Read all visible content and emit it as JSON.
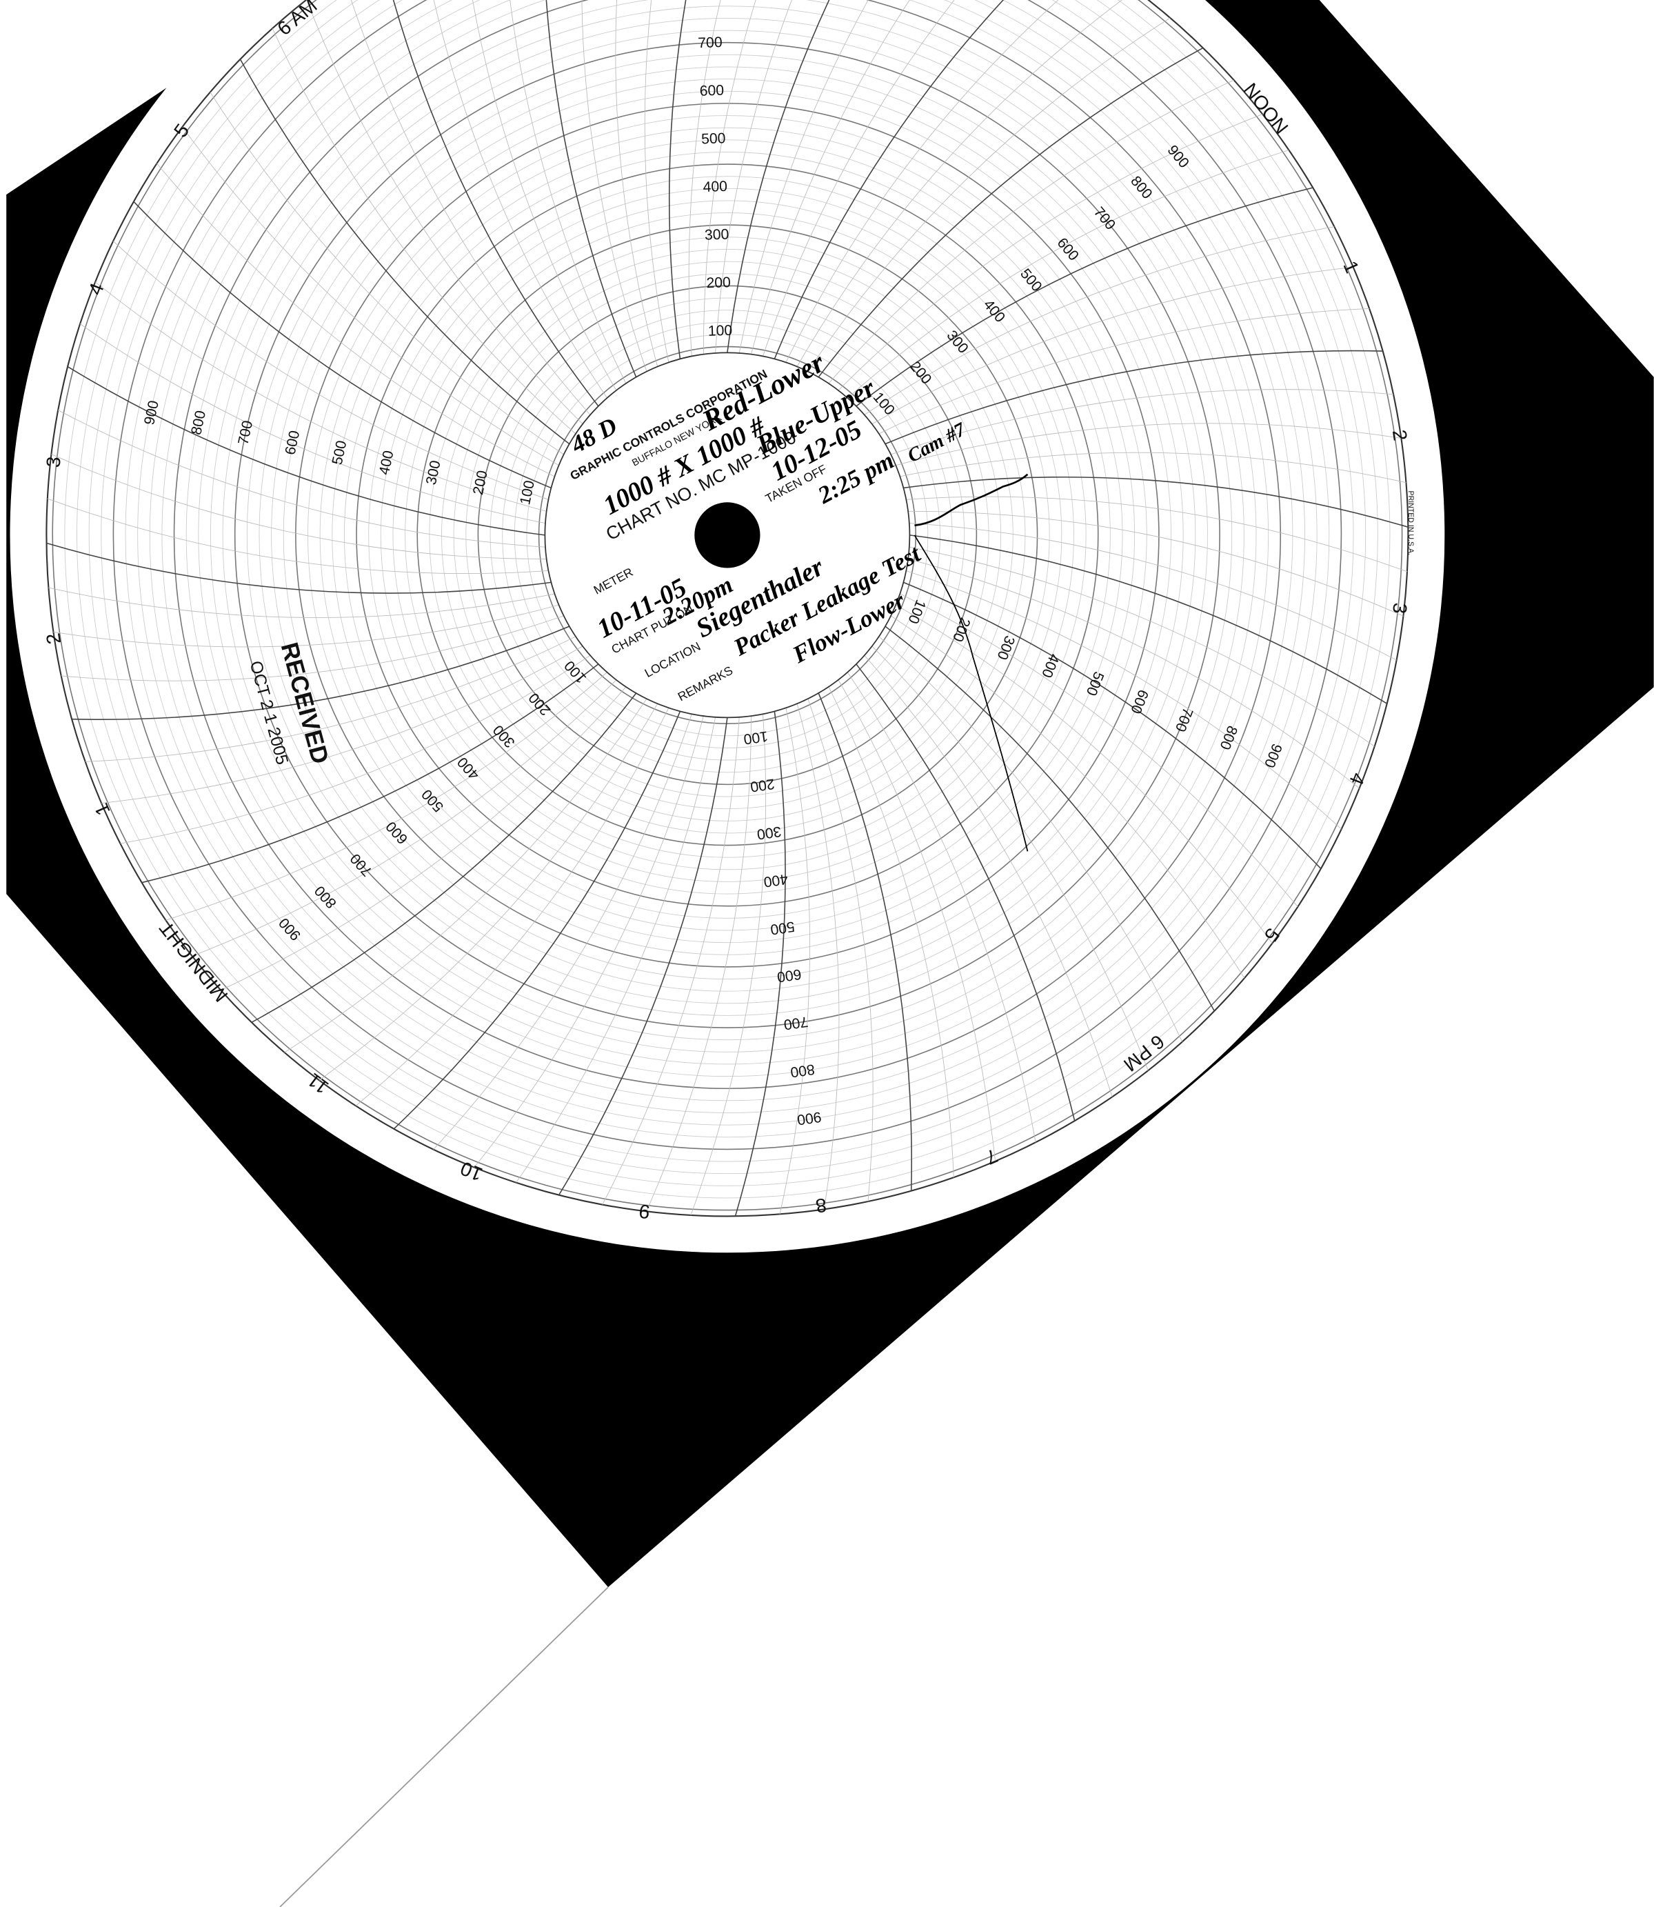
{
  "header": {
    "company": "GRAPHIC CONTROLS CORPORATION",
    "city": "BUFFALO NEW YORK",
    "chart_no": "CHART NO. MC MP-1000",
    "printed": "PRINTED IN U.S.A."
  },
  "fields": {
    "meter": "METER",
    "put_on": "CHART PUT ON",
    "taken_off": "TAKEN OFF",
    "location": "LOCATION",
    "remarks": "REMARKS"
  },
  "hours": [
    "NOON",
    "1",
    "2",
    "3",
    "4",
    "5",
    "6 PM",
    "7",
    "8",
    "9",
    "10",
    "11",
    "MIDNIGHT",
    "1",
    "2",
    "3",
    "4",
    "5",
    "6 AM"
  ],
  "scale": [
    100,
    200,
    300,
    400,
    500,
    600,
    700,
    800,
    900
  ],
  "handwriting": {
    "id": "48 D",
    "range": "1000 # X 1000 #",
    "red": "Red-Lower",
    "blue": "Blue-Upper",
    "off_date": "10-12-05",
    "off_time": "2:25 pm",
    "cam": "Cam #7",
    "on_date": "10-11-05",
    "on_time": "2:20pm",
    "location": "Siegenthaler",
    "remarks": "Packer Leakage Test",
    "flow": "Flow-Lower"
  },
  "stamp": {
    "title": "RECEIVED",
    "date": "OCT 2 1 2005"
  }
}
